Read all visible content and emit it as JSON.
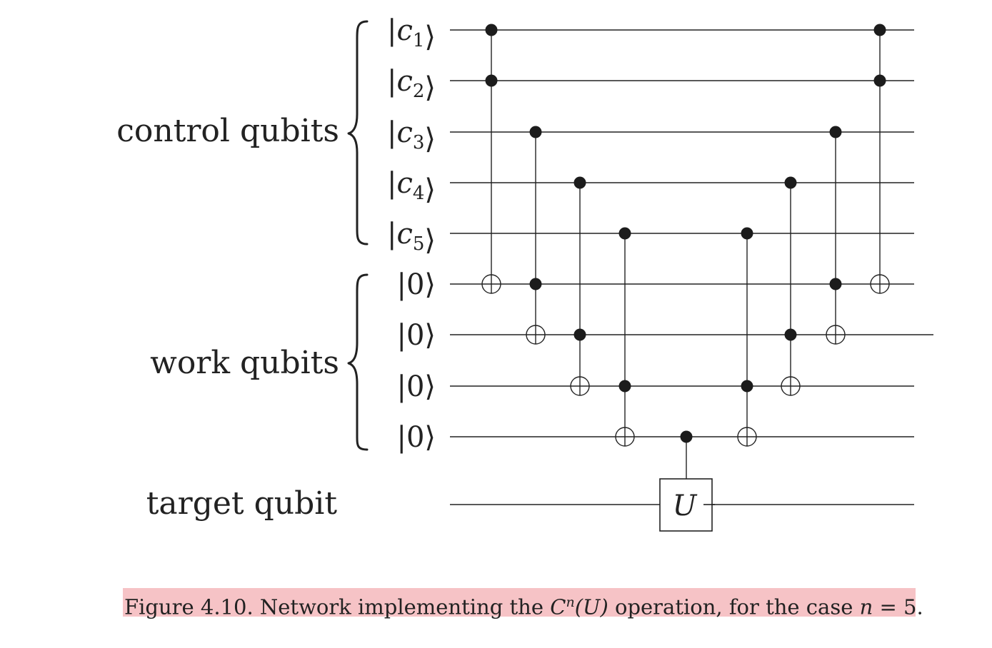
{
  "groups": {
    "control": "control qubits",
    "work": "work qubits",
    "target": "target qubit"
  },
  "kets": [
    {
      "var": "c",
      "sub": "1"
    },
    {
      "var": "c",
      "sub": "2"
    },
    {
      "var": "c",
      "sub": "3"
    },
    {
      "var": "c",
      "sub": "4"
    },
    {
      "var": "c",
      "sub": "5"
    },
    {
      "var": "",
      "sub": "",
      "value": "0"
    },
    {
      "var": "",
      "sub": "",
      "value": "0"
    },
    {
      "var": "",
      "sub": "",
      "value": "0"
    },
    {
      "var": "",
      "sub": "",
      "value": "0"
    }
  ],
  "ket_delims": {
    "left": "|",
    "right": "⟩"
  },
  "gate_label": "U",
  "gates": [
    {
      "type": "toffoli",
      "controls": [
        0,
        1
      ],
      "target": 5
    },
    {
      "type": "toffoli",
      "controls": [
        2,
        5
      ],
      "target": 6
    },
    {
      "type": "toffoli",
      "controls": [
        3,
        6
      ],
      "target": 7
    },
    {
      "type": "toffoli",
      "controls": [
        4,
        7
      ],
      "target": 8
    },
    {
      "type": "controlled-U",
      "controls": [
        8
      ],
      "target": 9
    },
    {
      "type": "toffoli",
      "controls": [
        4,
        7
      ],
      "target": 8
    },
    {
      "type": "toffoli",
      "controls": [
        3,
        6
      ],
      "target": 7
    },
    {
      "type": "toffoli",
      "controls": [
        2,
        5
      ],
      "target": 6
    },
    {
      "type": "toffoli",
      "controls": [
        0,
        1
      ],
      "target": 5
    }
  ],
  "caption": {
    "prefix": "Figure 4.10. Network implementing the ",
    "op": "C",
    "sup": "n",
    "arg": "(U)",
    "middle": " operation, for the case ",
    "n_var": "n",
    "equals": " = 5."
  }
}
